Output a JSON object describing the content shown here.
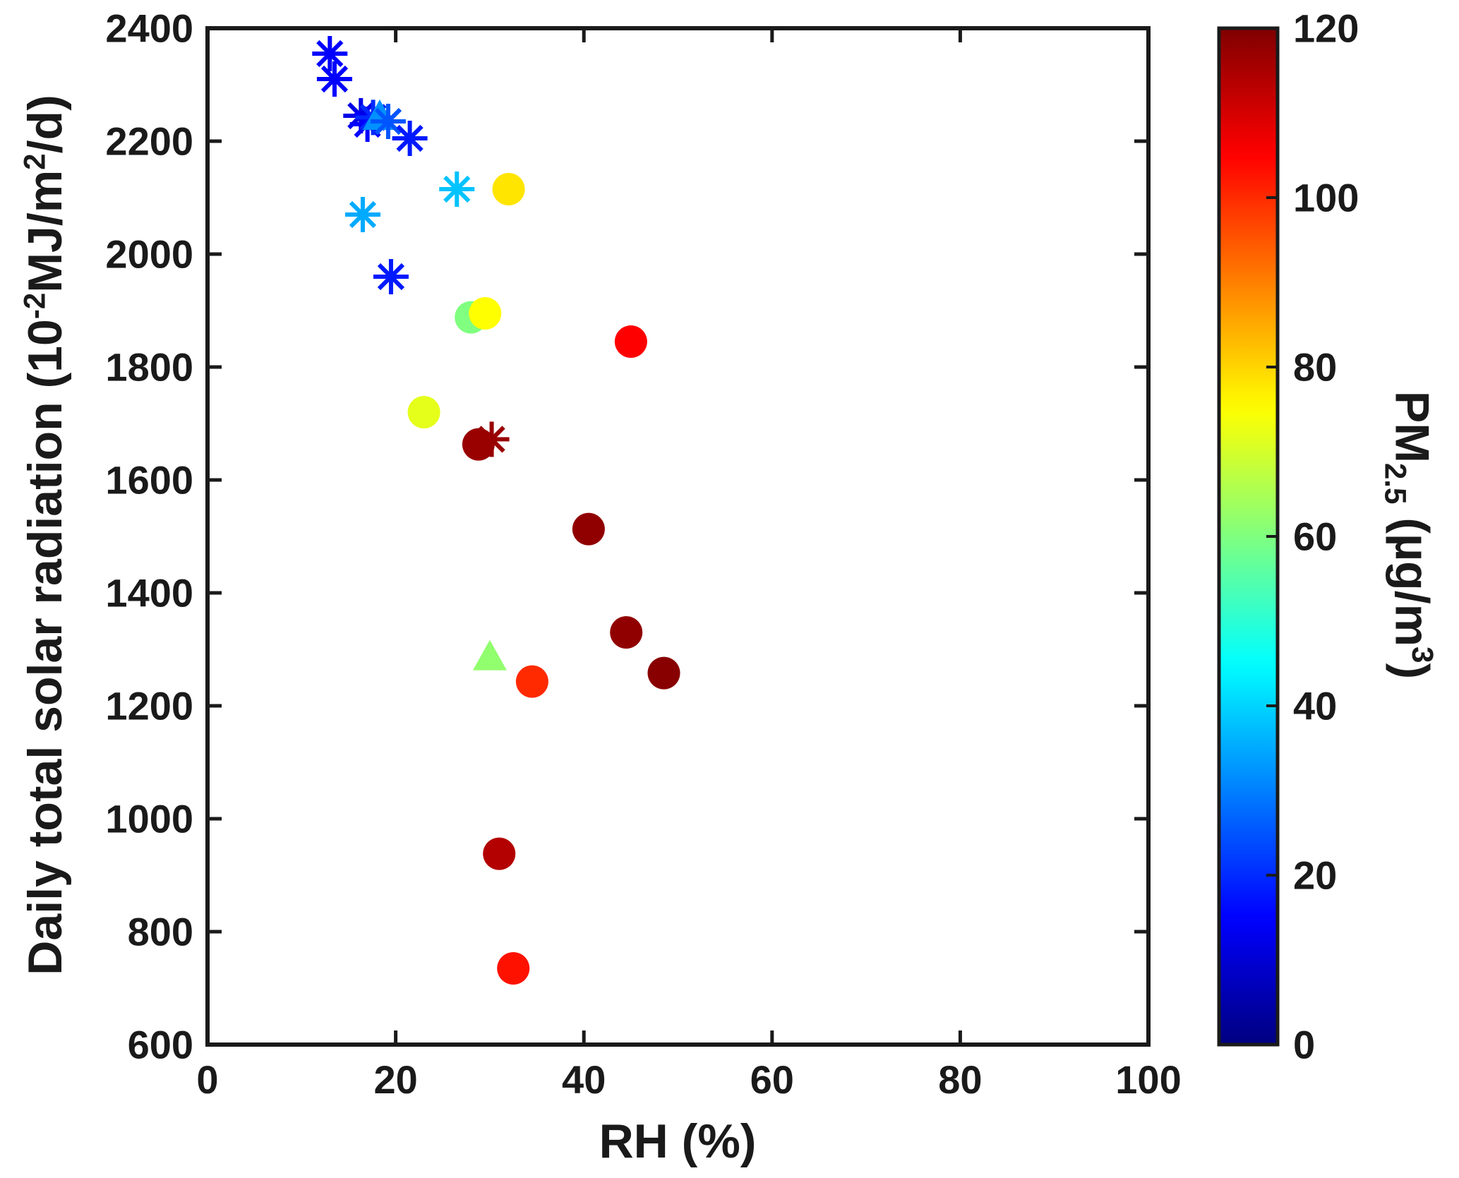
{
  "chart_data": {
    "type": "scatter",
    "title": "",
    "xlabel": "RH (%)",
    "ylabel_parts": {
      "p1": "Daily total solar radiation (10",
      "sup1": "-2",
      "p2": "MJ/m",
      "sup2": "2",
      "p3": "/d)"
    },
    "xlim": [
      0,
      100
    ],
    "ylim": [
      600,
      2400
    ],
    "xticks": [
      0,
      20,
      40,
      60,
      80,
      100
    ],
    "yticks": [
      600,
      800,
      1000,
      1200,
      1400,
      1600,
      1800,
      2000,
      2200,
      2400
    ],
    "grid": false,
    "axis_color": "#1a1a1a",
    "colorbar": {
      "label_parts": {
        "p1": "PM",
        "sub1": "2.5",
        "p2": " (µg/m",
        "sup2": "3",
        "p3": ")"
      },
      "min": 0,
      "max": 120,
      "ticks": [
        0,
        20,
        40,
        60,
        80,
        100,
        120
      ],
      "colormap": "jet"
    },
    "points": [
      {
        "x": 13.0,
        "y": 2355,
        "pm": 15,
        "marker": "asterisk"
      },
      {
        "x": 13.5,
        "y": 2310,
        "pm": 15,
        "marker": "asterisk"
      },
      {
        "x": 16.3,
        "y": 2245,
        "pm": 12,
        "marker": "asterisk"
      },
      {
        "x": 17.0,
        "y": 2230,
        "pm": 15,
        "marker": "asterisk"
      },
      {
        "x": 17.6,
        "y": 2242,
        "pm": 20,
        "marker": "asterisk"
      },
      {
        "x": 18.3,
        "y": 2240,
        "pm": 32,
        "marker": "triangle"
      },
      {
        "x": 19.2,
        "y": 2235,
        "pm": 25,
        "marker": "asterisk"
      },
      {
        "x": 21.5,
        "y": 2205,
        "pm": 18,
        "marker": "asterisk"
      },
      {
        "x": 26.5,
        "y": 2115,
        "pm": 38,
        "marker": "asterisk"
      },
      {
        "x": 16.5,
        "y": 2070,
        "pm": 35,
        "marker": "asterisk"
      },
      {
        "x": 19.5,
        "y": 1960,
        "pm": 18,
        "marker": "asterisk"
      },
      {
        "x": 32.0,
        "y": 2115,
        "pm": 78,
        "marker": "circle"
      },
      {
        "x": 28.0,
        "y": 1888,
        "pm": 60,
        "marker": "circle"
      },
      {
        "x": 29.5,
        "y": 1895,
        "pm": 75,
        "marker": "circle"
      },
      {
        "x": 45.0,
        "y": 1845,
        "pm": 105,
        "marker": "circle"
      },
      {
        "x": 23.0,
        "y": 1720,
        "pm": 72,
        "marker": "circle"
      },
      {
        "x": 28.8,
        "y": 1663,
        "pm": 117,
        "marker": "circle"
      },
      {
        "x": 30.2,
        "y": 1672,
        "pm": 117,
        "marker": "asterisk"
      },
      {
        "x": 40.5,
        "y": 1513,
        "pm": 118,
        "marker": "circle"
      },
      {
        "x": 44.5,
        "y": 1330,
        "pm": 118,
        "marker": "circle"
      },
      {
        "x": 48.5,
        "y": 1258,
        "pm": 119,
        "marker": "circle"
      },
      {
        "x": 34.5,
        "y": 1243,
        "pm": 100,
        "marker": "circle"
      },
      {
        "x": 30.0,
        "y": 1283,
        "pm": 62,
        "marker": "triangle"
      },
      {
        "x": 31.0,
        "y": 938,
        "pm": 114,
        "marker": "circle"
      },
      {
        "x": 32.5,
        "y": 735,
        "pm": 103,
        "marker": "circle"
      }
    ]
  }
}
